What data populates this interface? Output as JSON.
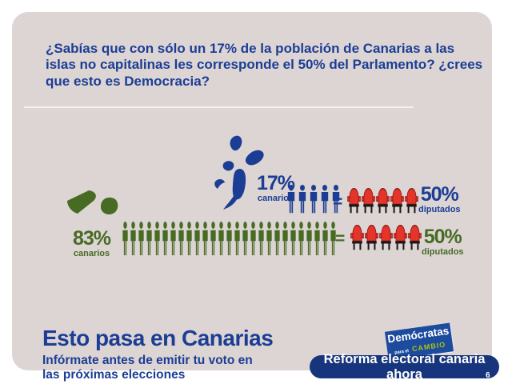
{
  "headline": "¿Sabías que con sólo un 17% de la población de Canarias a las islas no capitalinas les corresponde el 50% del Parlamento? ¿crees que esto es Democracia?",
  "equals_sign": "=",
  "rows": [
    {
      "group": "islas no capitalinas",
      "population_pct": "17%",
      "population_label": "canarios",
      "people_count": 5,
      "chair_count": 5,
      "seats_pct": "50%",
      "seats_label": "diputados",
      "color": "#1b3e94"
    },
    {
      "group": "islas capitalinas",
      "population_pct": "83%",
      "population_label": "canarios",
      "people_count": 27,
      "chair_count": 5,
      "seats_pct": "50%",
      "seats_label": "diputados",
      "color": "#486b24"
    }
  ],
  "chart_data": {
    "type": "bar",
    "variant": "pictogram",
    "title": "¿Sabías que con sólo un 17% de la población de Canarias a las islas no capitalinas les corresponde el 50% del Parlamento? ¿crees que esto es Democracia?",
    "categories": [
      "Islas no capitalinas",
      "Islas capitalinas"
    ],
    "series": [
      {
        "name": "% población (canarios)",
        "values": [
          17,
          83
        ]
      },
      {
        "name": "% Parlamento (diputados)",
        "values": [
          50,
          50
        ]
      }
    ],
    "icon_counts": {
      "people": [
        5,
        27
      ],
      "chairs": [
        5,
        5
      ]
    },
    "legend_position": "none",
    "grid": false
  },
  "footer": {
    "title": "Esto pasa en Canarias",
    "subtitle": "Infórmate antes de emitir tu voto en las próximas elecciones",
    "cta_label": "Reforma electoral canaria ahora",
    "page_number": "6"
  },
  "logo": {
    "line1": "Demócratas",
    "line2a": "para el",
    "line2b": "CAMBIO"
  },
  "colors": {
    "headline_blue": "#1b3e94",
    "green": "#486b24",
    "chair_red": "#e5342a",
    "button_navy": "#16357c",
    "logo_blue": "#1d4b9e",
    "cambio_green": "#a6c414",
    "panel_pink": "#ddd4d4"
  },
  "icons": {
    "person": "person-icon",
    "chair": "chair-icon",
    "islands_non_capital": "non-capital-islands-map",
    "islands_capital": "capital-islands-map"
  }
}
